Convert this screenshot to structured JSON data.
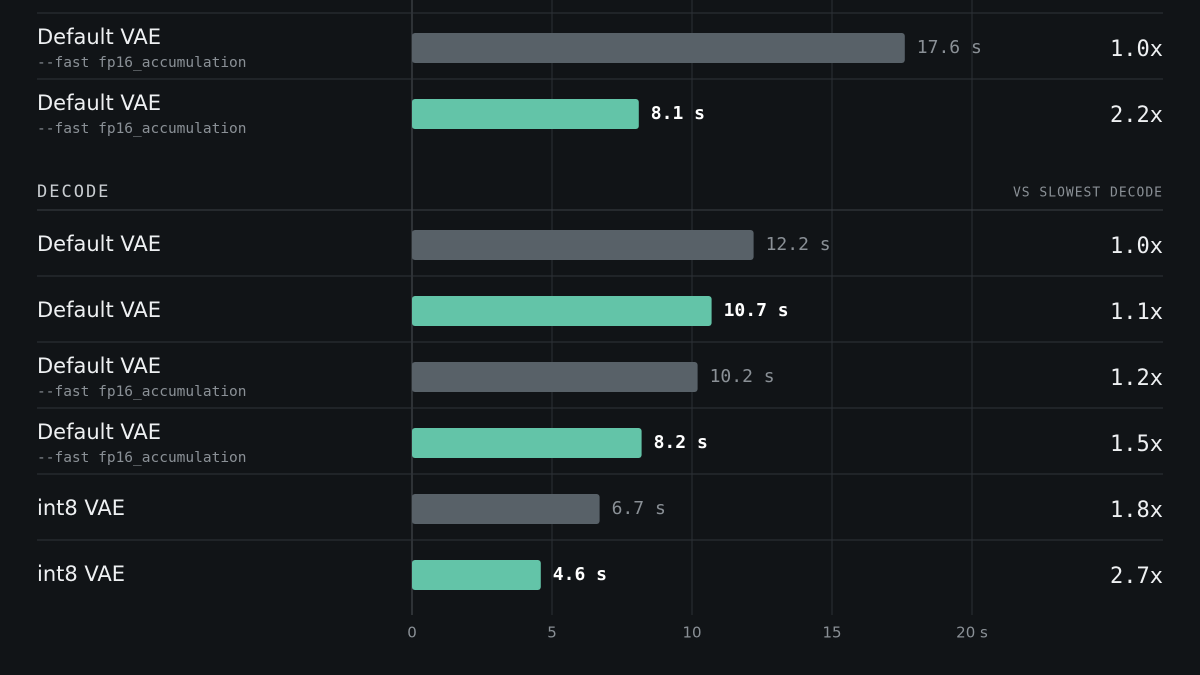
{
  "chart_data": {
    "type": "barh",
    "xlim": [
      0,
      20
    ],
    "xticks": [
      0,
      5,
      10,
      15,
      {
        "value": 20,
        "label": "20 s"
      }
    ],
    "grid": true,
    "sections": [
      {
        "rows": [
          {
            "label": "Default VAE",
            "sublabel": "--fast fp16_accumulation",
            "value": 17.6,
            "value_label": "17.6 s",
            "ratio": "1.0x",
            "color": "#586168"
          },
          {
            "label": "Default VAE",
            "sublabel": "--fast fp16_accumulation",
            "value": 8.1,
            "value_label": "8.1 s",
            "ratio": "2.2x",
            "color": "#63c4a8"
          }
        ]
      },
      {
        "title": "DECODE",
        "note": "VS SLOWEST DECODE",
        "rows": [
          {
            "label": "Default VAE",
            "value": 12.2,
            "value_label": "12.2 s",
            "ratio": "1.0x",
            "color": "#586168"
          },
          {
            "label": "Default VAE",
            "value": 10.7,
            "value_label": "10.7 s",
            "ratio": "1.1x",
            "color": "#63c4a8"
          },
          {
            "label": "Default VAE",
            "sublabel": "--fast fp16_accumulation",
            "value": 10.2,
            "value_label": "10.2 s",
            "ratio": "1.2x",
            "color": "#586168"
          },
          {
            "label": "Default VAE",
            "sublabel": "--fast fp16_accumulation",
            "value": 8.2,
            "value_label": "8.2 s",
            "ratio": "1.5x",
            "color": "#63c4a8"
          },
          {
            "label": "int8 VAE",
            "value": 6.7,
            "value_label": "6.7 s",
            "ratio": "1.8x",
            "color": "#586168"
          },
          {
            "label": "int8 VAE",
            "value": 4.6,
            "value_label": "4.6 s",
            "ratio": "2.7x",
            "color": "#63c4a8"
          }
        ]
      }
    ]
  }
}
